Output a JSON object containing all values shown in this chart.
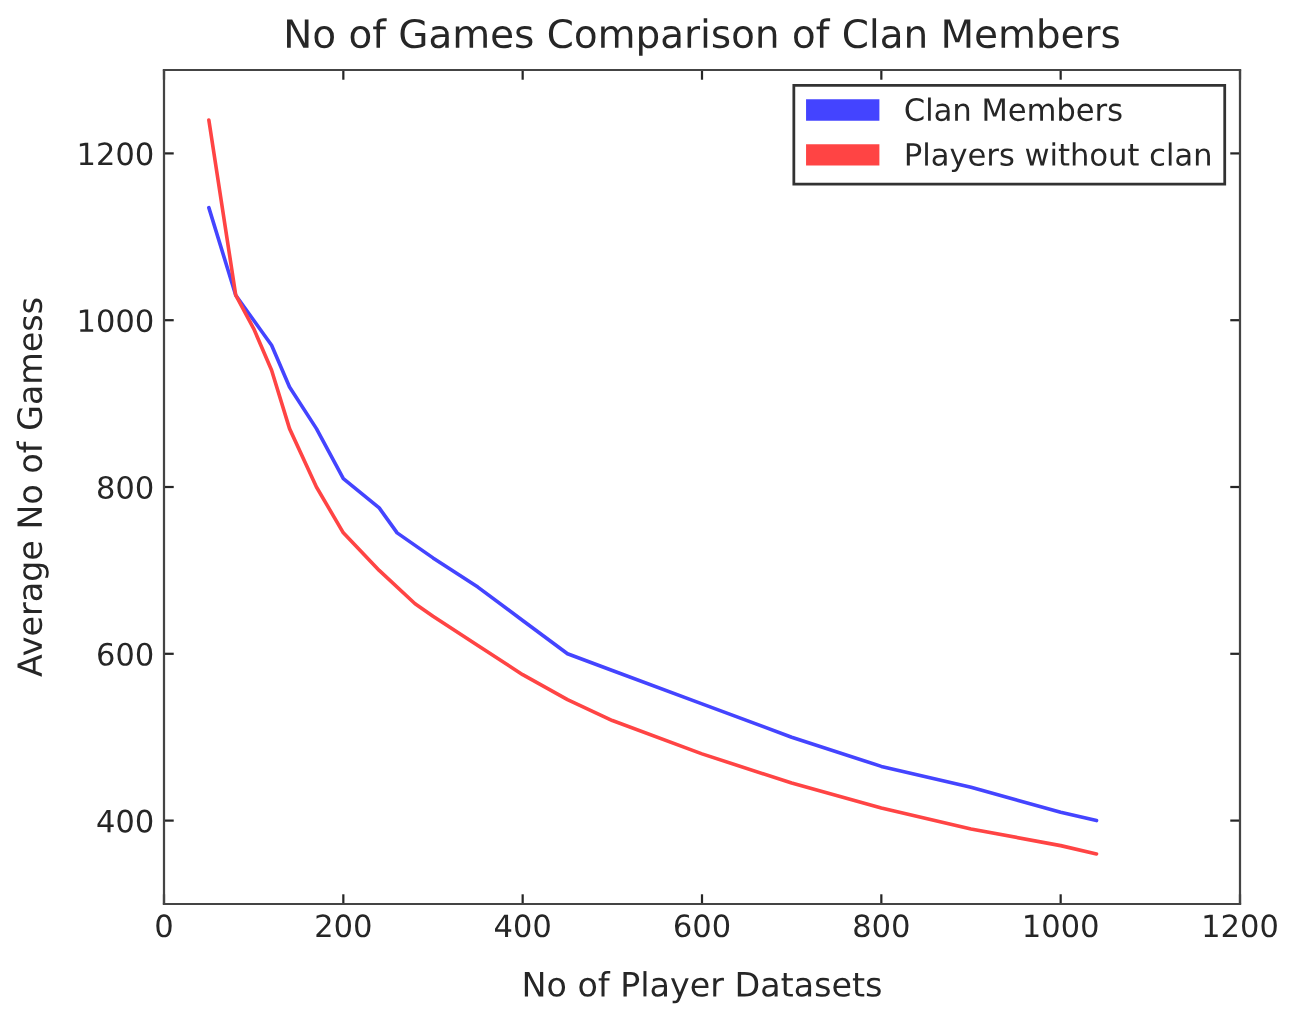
{
  "chart_data": {
    "type": "line",
    "title": "No of Games Comparison of Clan Members",
    "xlabel": "No of Player Datasets",
    "ylabel": "Average No of Gamess",
    "series": [
      {
        "name": "Clan Members",
        "color": "#4444ff",
        "x": [
          50,
          80,
          100,
          120,
          140,
          170,
          200,
          240,
          260,
          300,
          350,
          400,
          450,
          500,
          600,
          700,
          800,
          900,
          1000,
          1040
        ],
        "values": [
          1135,
          1030,
          1000,
          970,
          920,
          870,
          810,
          775,
          745,
          715,
          680,
          640,
          600,
          580,
          540,
          500,
          465,
          440,
          410,
          400
        ]
      },
      {
        "name": "Players without clan",
        "color": "#ff4444",
        "x": [
          50,
          80,
          100,
          120,
          140,
          170,
          200,
          240,
          280,
          300,
          350,
          400,
          450,
          500,
          600,
          700,
          800,
          900,
          1000,
          1040
        ],
        "values": [
          1240,
          1030,
          990,
          940,
          870,
          800,
          745,
          700,
          660,
          645,
          610,
          575,
          545,
          520,
          480,
          445,
          415,
          390,
          370,
          360
        ]
      }
    ],
    "xlim": [
      0,
      1200
    ],
    "xticks": [
      0,
      200,
      400,
      600,
      800,
      1000,
      1200
    ],
    "ylim": [
      300,
      1300
    ],
    "yticks": [
      400,
      600,
      800,
      1000,
      1200
    ],
    "grid": false,
    "legend": "top right"
  }
}
